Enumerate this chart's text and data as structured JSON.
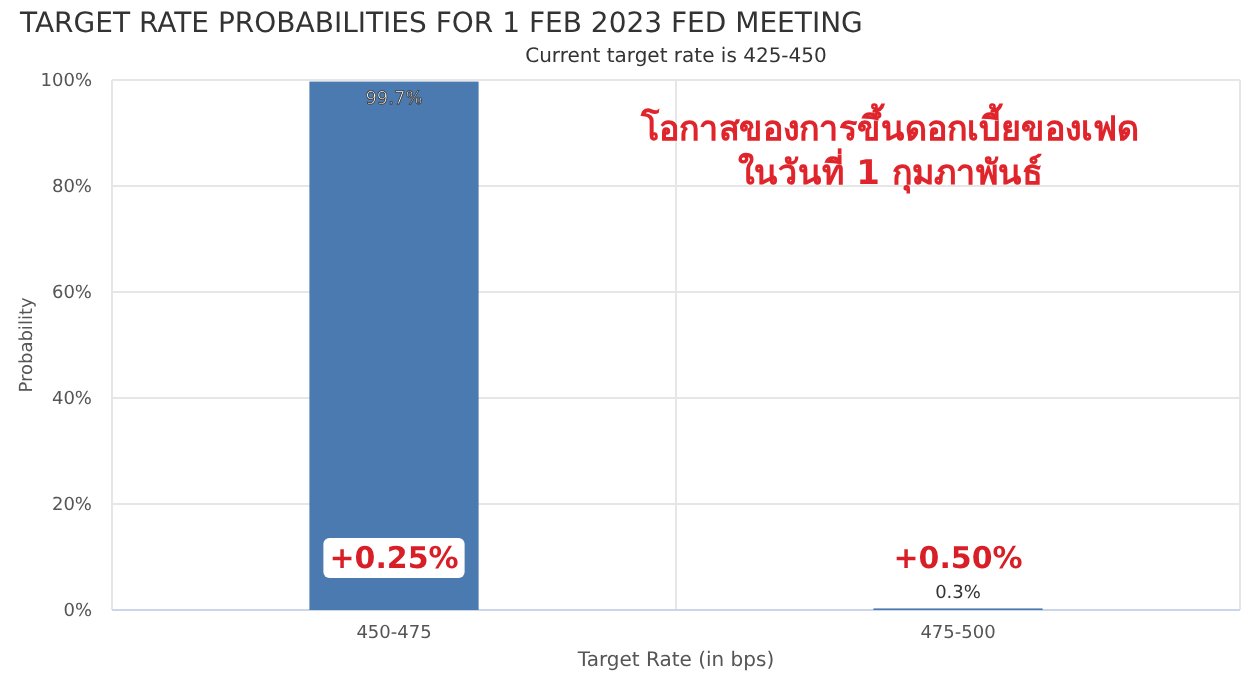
{
  "chart_data": {
    "type": "bar",
    "title": "TARGET RATE PROBABILITIES FOR 1 FEB 2023 FED MEETING",
    "subtitle": "Current target rate is 425-450",
    "xlabel": "Target Rate (in bps)",
    "ylabel": "Probability",
    "categories": [
      "450-475",
      "475-500"
    ],
    "values": [
      99.7,
      0.3
    ],
    "value_labels": [
      "99.7%",
      "0.3%"
    ],
    "color": "#4a7ab0",
    "ylim": [
      0,
      100
    ],
    "yticks": [
      {
        "value": 0,
        "label": "0%"
      },
      {
        "value": 20,
        "label": "20%"
      },
      {
        "value": 40,
        "label": "40%"
      },
      {
        "value": 60,
        "label": "60%"
      },
      {
        "value": 80,
        "label": "80%"
      },
      {
        "value": 100,
        "label": "100%"
      }
    ],
    "grid": true,
    "annotations": [
      "โอกาสของการขึ้นดอกเบี้ยของเฟด\nในวันที่ 1 กุมภาพันธ์",
      "+0.25%",
      "+0.50%"
    ]
  }
}
